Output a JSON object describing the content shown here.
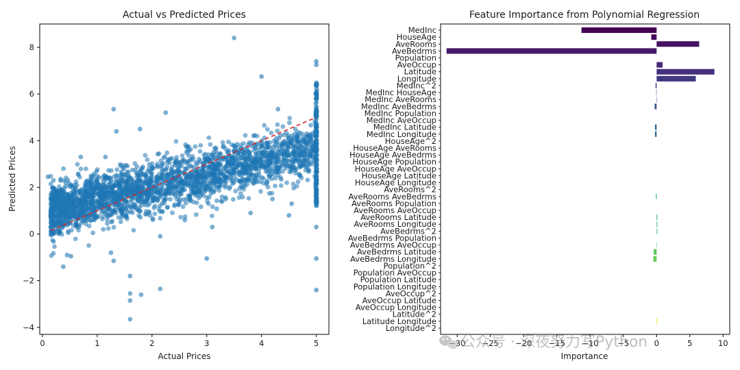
{
  "chart_data": [
    {
      "type": "scatter",
      "title": "Actual vs Predicted Prices",
      "xlabel": "Actual Prices",
      "ylabel": "Predicted Prices",
      "xlim": [
        -0.05,
        5.23
      ],
      "ylim": [
        -4.3,
        9.0
      ],
      "xticks": [
        0,
        1,
        2,
        3,
        4,
        5
      ],
      "yticks": [
        -4,
        -2,
        0,
        2,
        4,
        6,
        8
      ],
      "point_color": "#1f77b4",
      "reference_line": {
        "from": [
          0.15,
          0.15
        ],
        "to": [
          5.0,
          5.0
        ],
        "color": "#d62728",
        "style": "dashed"
      },
      "outliers": [
        [
          3.5,
          8.4
        ],
        [
          4.0,
          6.75
        ],
        [
          1.3,
          5.35
        ],
        [
          2.25,
          5.2
        ],
        [
          1.78,
          4.5
        ],
        [
          4.3,
          5.35
        ],
        [
          1.6,
          -1.8
        ],
        [
          1.6,
          -2.55
        ],
        [
          1.6,
          -2.85
        ],
        [
          1.6,
          -3.65
        ],
        [
          1.8,
          -2.6
        ],
        [
          2.15,
          -2.35
        ],
        [
          0.45,
          -0.9
        ],
        [
          0.38,
          -1.4
        ],
        [
          0.52,
          -0.95
        ],
        [
          1.3,
          -1.15
        ],
        [
          1.25,
          -0.8
        ],
        [
          3.0,
          -1.05
        ],
        [
          2.15,
          -0.1
        ],
        [
          3.1,
          0.3
        ],
        [
          4.5,
          0.8
        ],
        [
          0.1,
          2.45
        ],
        [
          0.2,
          2.3
        ],
        [
          1.15,
          3.3
        ],
        [
          0.7,
          3.3
        ],
        [
          1.35,
          4.4
        ],
        [
          4.2,
          1.5
        ],
        [
          4.55,
          1.3
        ],
        [
          3.8,
          0.9
        ],
        [
          2.6,
          0.6
        ],
        [
          5.0,
          7.4
        ],
        [
          5.0,
          7.25
        ],
        [
          5.0,
          -1.05
        ],
        [
          5.0,
          -2.4
        ],
        [
          5.0,
          0.3
        ]
      ]
    },
    {
      "type": "bar",
      "orientation": "horizontal",
      "title": "Feature Importance from Polynomial Regression",
      "xlabel": "Importance",
      "xlim": [
        -32.5,
        11
      ],
      "xticks": [
        -30,
        -25,
        -20,
        -15,
        -10,
        -5,
        0,
        5,
        10
      ],
      "colormap": "viridis",
      "categories": [
        "MedInc",
        "HouseAge",
        "AveRooms",
        "AveBedrms",
        "Population",
        "AveOccup",
        "Latitude",
        "Longitude",
        "MedInc^2",
        "MedInc HouseAge",
        "MedInc AveRooms",
        "MedInc AveBedrms",
        "MedInc Population",
        "MedInc AveOccup",
        "MedInc Latitude",
        "MedInc Longitude",
        "HouseAge^2",
        "HouseAge AveRooms",
        "HouseAge AveBedrms",
        "HouseAge Population",
        "HouseAge AveOccup",
        "HouseAge Latitude",
        "HouseAge Longitude",
        "AveRooms^2",
        "AveRooms AveBedrms",
        "AveRooms Population",
        "AveRooms AveOccup",
        "AveRooms Latitude",
        "AveRooms Longitude",
        "AveBedrms^2",
        "AveBedrms Population",
        "AveBedrms AveOccup",
        "AveBedrms Latitude",
        "AveBedrms Longitude",
        "Population^2",
        "Population AveOccup",
        "Population Latitude",
        "Population Longitude",
        "AveOccup^2",
        "AveOccup Latitude",
        "AveOccup Longitude",
        "Latitude^2",
        "Latitude Longitude",
        "Longitude^2"
      ],
      "values": [
        -11.3,
        -0.8,
        6.4,
        -31.6,
        0.0,
        0.9,
        8.7,
        5.9,
        -0.15,
        -0.05,
        0.05,
        -0.3,
        0.0,
        0.0,
        -0.25,
        -0.25,
        0.0,
        0.0,
        0.0,
        0.0,
        0.0,
        0.0,
        0.0,
        0.0,
        -0.1,
        0.0,
        0.0,
        0.1,
        0.1,
        0.1,
        0.0,
        0.05,
        -0.45,
        -0.5,
        0.0,
        0.0,
        0.0,
        0.0,
        0.0,
        0.0,
        0.0,
        0.0,
        0.1,
        0.0
      ]
    }
  ],
  "watermark": "公众号 · 深夜努力写Python"
}
